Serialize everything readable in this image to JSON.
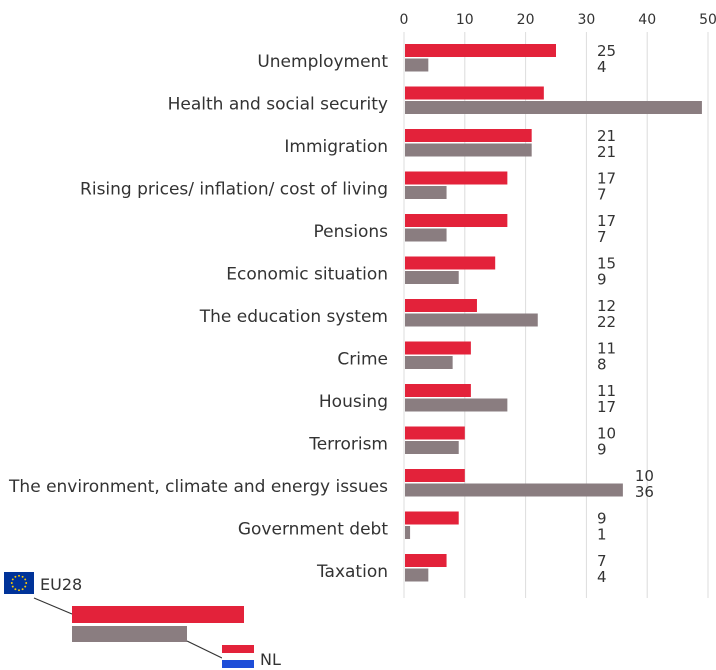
{
  "chart_data": {
    "type": "bar",
    "orientation": "horizontal",
    "xlim": [
      0,
      50
    ],
    "xticks": [
      0,
      10,
      20,
      30,
      40,
      50
    ],
    "grid": true,
    "categories": [
      "Unemployment",
      "Health and social security",
      "Immigration",
      "Rising prices/ inflation/ cost of living",
      "Pensions",
      "Economic situation",
      "The education system",
      "Crime",
      "Housing",
      "Terrorism",
      "The environment, climate and energy issues",
      "Government debt",
      "Taxation"
    ],
    "series": [
      {
        "name": "EU28",
        "color": "#e3223a",
        "values": [
          25,
          23,
          21,
          17,
          17,
          15,
          12,
          11,
          11,
          10,
          10,
          9,
          7
        ]
      },
      {
        "name": "NL",
        "color": "#8a7d80",
        "values": [
          4,
          49,
          21,
          7,
          7,
          9,
          22,
          8,
          17,
          9,
          36,
          1,
          4
        ]
      }
    ],
    "value_labels": [
      [
        "25",
        "4"
      ],
      [
        "",
        ""
      ],
      [
        "21",
        "21"
      ],
      [
        "17",
        "7"
      ],
      [
        "17",
        "7"
      ],
      [
        "15",
        "9"
      ],
      [
        "12",
        "22"
      ],
      [
        "11",
        "8"
      ],
      [
        "11",
        "17"
      ],
      [
        "10",
        "9"
      ],
      [
        "10",
        "36"
      ],
      [
        "9",
        "1"
      ],
      [
        "7",
        "4"
      ]
    ],
    "legend": {
      "placement": "bottom-left",
      "items": [
        {
          "label": "EU28",
          "flag": "eu-flag-icon"
        },
        {
          "label": "NL",
          "flag": "nl-flag-icon"
        }
      ]
    }
  }
}
